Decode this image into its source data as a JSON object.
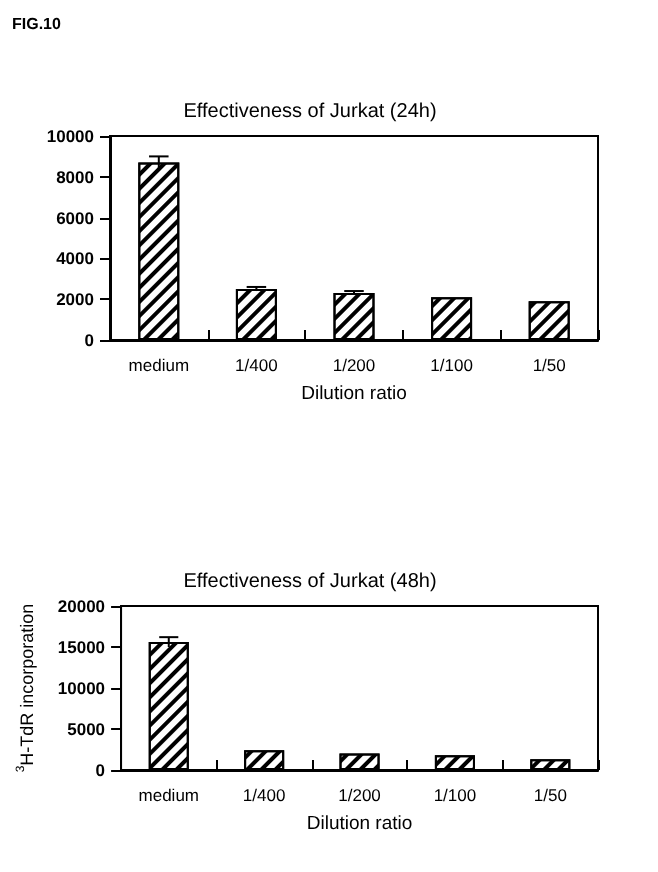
{
  "chart_data": [
    {
      "type": "bar",
      "title": "Effectiveness of Jurkat (24h)",
      "annotations": [
        "FIG.10"
      ],
      "xlabel": "Dilution ratio",
      "categories": [
        "medium",
        "1/400",
        "1/200",
        "1/100",
        "1/50"
      ],
      "values": [
        8700,
        2500,
        2300,
        2100,
        1900
      ],
      "errors": [
        300,
        100,
        100,
        null,
        null
      ],
      "color": "#000000",
      "ylim": [
        0,
        10000
      ],
      "yticks": [
        0,
        2000,
        4000,
        6000,
        8000,
        10000
      ],
      "grid": false
    },
    {
      "type": "bar",
      "title": "Effectiveness of Jurkat (48h)",
      "xlabel": "Dilution ratio",
      "ylabel": "$^{3}$H-TdR incorporation",
      "categories": [
        "medium",
        "1/400",
        "1/200",
        "1/100",
        "1/50"
      ],
      "values": [
        15600,
        2400,
        2000,
        1800,
        1300
      ],
      "errors": [
        600,
        null,
        null,
        null,
        null
      ],
      "color": "#000000",
      "ylim": [
        0,
        20000
      ],
      "yticks": [
        0,
        5000,
        10000,
        15000,
        20000
      ],
      "grid": false
    }
  ]
}
